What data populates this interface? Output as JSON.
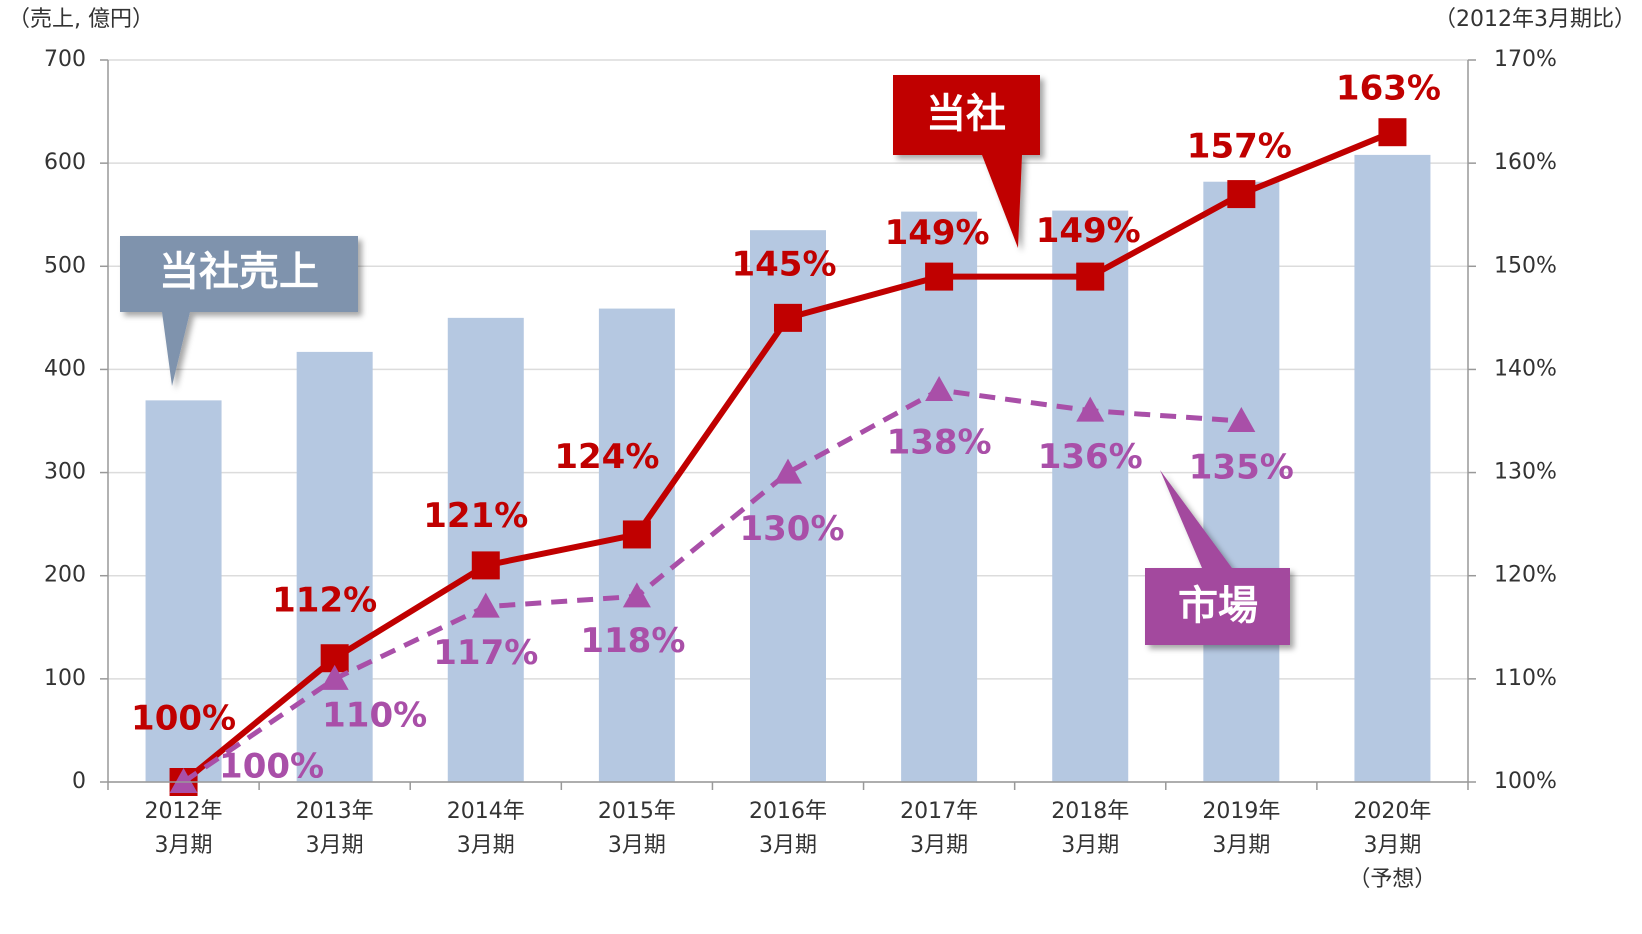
{
  "chart_data": {
    "type": "bar-line",
    "y_label": "（売上, 億円）",
    "y2_label": "（2012年3月期比）",
    "categories": [
      [
        "2012年",
        "3月期"
      ],
      [
        "2013年",
        "3月期"
      ],
      [
        "2014年",
        "3月期"
      ],
      [
        "2015年",
        "3月期"
      ],
      [
        "2016年",
        "3月期"
      ],
      [
        "2017年",
        "3月期"
      ],
      [
        "2018年",
        "3月期"
      ],
      [
        "2019年",
        "3月期"
      ],
      [
        "2020年",
        "3月期",
        "（予想）"
      ]
    ],
    "series": [
      {
        "name": "当社売上",
        "type": "bar",
        "color": "#b5c8e1",
        "values": [
          370,
          417,
          450,
          459,
          535,
          553,
          554,
          582,
          608
        ]
      },
      {
        "name": "当社",
        "type": "line",
        "axis": "y2",
        "color": "#c00000",
        "marker": "square",
        "dashed": false,
        "values": [
          100,
          112,
          121,
          124,
          145,
          149,
          149,
          157,
          163
        ],
        "value_labels": [
          "100%",
          "112%",
          "121%",
          "124%",
          "145%",
          "149%",
          "149%",
          "157%",
          "163%"
        ]
      },
      {
        "name": "市場",
        "type": "line",
        "axis": "y2",
        "color": "#a94fa8",
        "marker": "triangle",
        "dashed": true,
        "values": [
          100,
          110,
          117,
          118,
          130,
          138,
          136,
          135,
          null
        ],
        "value_labels": [
          "100%",
          "110%",
          "117%",
          "118%",
          "130%",
          "138%",
          "136%",
          "135%",
          null
        ]
      }
    ],
    "ylim": [
      0,
      700
    ],
    "yticks": [
      0,
      100,
      200,
      300,
      400,
      500,
      600,
      700
    ],
    "y2lim": [
      100,
      170
    ],
    "y2ticks": [
      {
        "value": 100,
        "label": "100%"
      },
      {
        "value": 110,
        "label": "110%"
      },
      {
        "value": 120,
        "label": "120%"
      },
      {
        "value": 130,
        "label": "130%"
      },
      {
        "value": 140,
        "label": "140%"
      },
      {
        "value": 150,
        "label": "150%"
      },
      {
        "value": 160,
        "label": "160%"
      },
      {
        "value": 170,
        "label": "170%"
      }
    ],
    "grid": true
  }
}
